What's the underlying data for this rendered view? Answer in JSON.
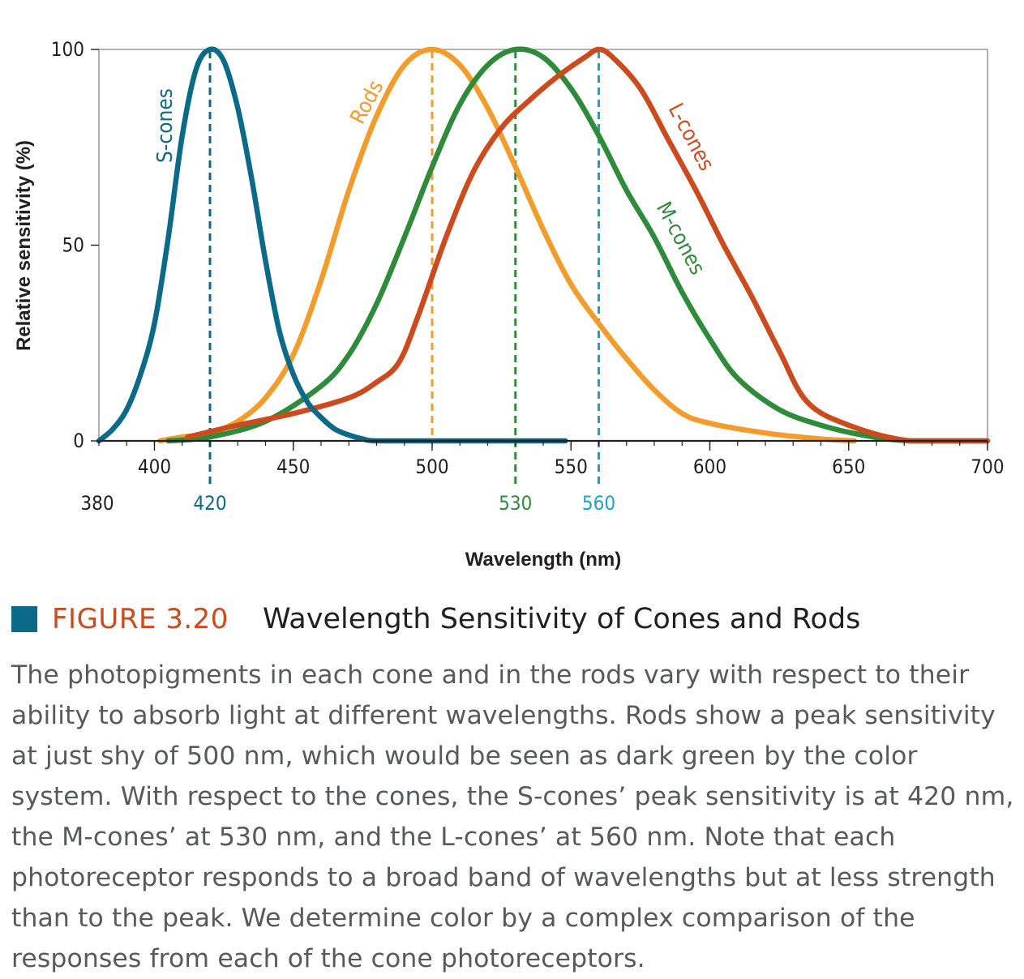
{
  "chart_data": {
    "type": "line",
    "xlabel": "Wavelength (nm)",
    "ylabel": "Relative sensitivity (%)",
    "xlim": [
      380,
      700
    ],
    "ylim": [
      0,
      100
    ],
    "x_ticks": [
      400,
      450,
      500,
      550,
      600,
      650,
      700
    ],
    "y_ticks": [
      0,
      50,
      100
    ],
    "grid": false,
    "peak_lines": [
      {
        "x": 420,
        "label": "420",
        "color": "#0b6a87"
      },
      {
        "x": 500,
        "label": "",
        "color": "#f39c2b"
      },
      {
        "x": 530,
        "label": "530",
        "color": "#2e8b3a"
      },
      {
        "x": 560,
        "label": "560",
        "color": "#1aa3c8"
      }
    ],
    "extra_x_label": "380",
    "series": [
      {
        "name": "S-cones",
        "color": "#0b6a87",
        "x": [
          380,
          385,
          390,
          395,
          400,
          405,
          410,
          415,
          420,
          425,
          430,
          435,
          440,
          445,
          450,
          455,
          460,
          465,
          470,
          475,
          480,
          500,
          520,
          548
        ],
        "y": [
          0,
          3,
          8,
          17,
          30,
          52,
          78,
          95,
          100,
          97,
          85,
          67,
          46,
          28,
          17,
          10,
          6,
          3,
          1.5,
          0.5,
          0,
          0,
          0,
          0
        ]
      },
      {
        "name": "Rods",
        "color": "#f39c2b",
        "x": [
          402,
          410,
          420,
          430,
          440,
          450,
          460,
          470,
          480,
          490,
          500,
          510,
          520,
          530,
          540,
          550,
          560,
          570,
          580,
          590,
          600,
          620,
          640,
          652
        ],
        "y": [
          0,
          1,
          2,
          5,
          11,
          22,
          41,
          64,
          83,
          96,
          100,
          96,
          85,
          70,
          54,
          40,
          30,
          21,
          13,
          7,
          4.5,
          2,
          0.5,
          0
        ]
      },
      {
        "name": "M-cones",
        "color": "#2e8b3a",
        "x": [
          405,
          420,
          440,
          460,
          470,
          480,
          490,
          500,
          510,
          520,
          530,
          540,
          550,
          560,
          570,
          580,
          590,
          600,
          610,
          625,
          640,
          655,
          672,
          700
        ],
        "y": [
          0,
          1,
          5,
          14,
          22,
          35,
          52,
          70,
          86,
          96,
          100,
          98,
          90,
          78,
          64,
          52,
          38,
          26,
          16,
          8,
          4,
          1.5,
          0,
          0
        ]
      },
      {
        "name": "L-cones",
        "color": "#cc4a1c",
        "x": [
          412,
          430,
          450,
          470,
          480,
          488,
          495,
          505,
          515,
          525,
          535,
          545,
          555,
          560,
          565,
          575,
          585,
          595,
          605,
          615,
          625,
          635,
          650,
          672,
          700
        ],
        "y": [
          1,
          4,
          7,
          11,
          15,
          20,
          32,
          52,
          69,
          80,
          87,
          93,
          98,
          100,
          98,
          90,
          77,
          64,
          50,
          37,
          23,
          10,
          4,
          0,
          0
        ]
      }
    ]
  },
  "caption": {
    "figure_number": "FIGURE 3.20",
    "figure_title": "Wavelength Sensitivity of Cones and Rods",
    "body": "The photopigments in each cone and in the rods vary with respect to their ability to absorb light at different wavelengths. Rods show a peak sensitivity at just shy of 500 nm, which would be seen as dark green by the color system. With respect to the cones, the S-cones’ peak sensitivity is at 420 nm, the M-cones’ at 530 nm, and the L-cones’ at 560 nm. Note that each photoreceptor responds to a broad band of wavelengths but at less strength than to the peak. We determine color by a complex comparison of the responses from each of the cone photoreceptors."
  }
}
